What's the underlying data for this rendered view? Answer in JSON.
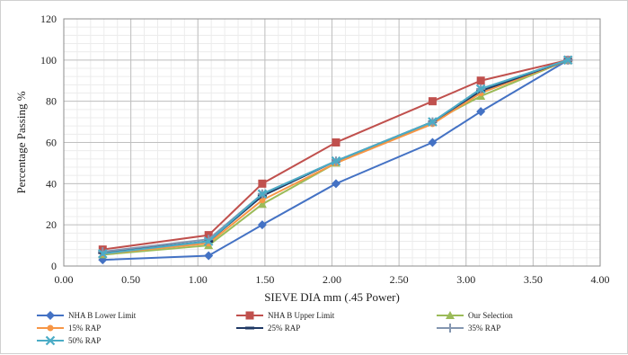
{
  "chart_data": {
    "type": "line",
    "xlabel": "SIEVE DIA mm (.45 Power)",
    "ylabel": "Percentage Passing %",
    "xlim": [
      0,
      4
    ],
    "ylim": [
      0,
      120
    ],
    "x_ticks": [
      "0.00",
      "0.50",
      "1.00",
      "1.50",
      "2.00",
      "2.50",
      "3.00",
      "3.50",
      "4.00"
    ],
    "y_ticks": [
      "0",
      "20",
      "40",
      "60",
      "80",
      "100",
      "120"
    ],
    "grid": true,
    "legend_position": "bottom",
    "x": [
      0.29,
      1.08,
      1.48,
      2.03,
      2.75,
      3.11,
      3.76
    ],
    "series": [
      {
        "name": "NHA B Lower Limit",
        "color": "#4472c4",
        "marker": "diamond",
        "values": [
          3,
          5,
          20,
          40,
          60,
          75,
          100
        ]
      },
      {
        "name": "NHA B Upper Limit",
        "color": "#c0504d",
        "marker": "square",
        "values": [
          8,
          15,
          40,
          60,
          80,
          90,
          100
        ]
      },
      {
        "name": "Our Selection",
        "color": "#9bbb59",
        "marker": "triangle",
        "values": [
          5.5,
          10,
          30,
          50,
          70,
          82.5,
          100
        ]
      },
      {
        "name": "15% RAP",
        "color": "#f79646",
        "marker": "circle",
        "values": [
          6,
          11,
          32,
          50,
          69,
          84,
          100
        ]
      },
      {
        "name": "25% RAP",
        "color": "#1f3864",
        "marker": "dash",
        "values": [
          6.5,
          12,
          34,
          51,
          70,
          85,
          100
        ]
      },
      {
        "name": "35%  RAP",
        "color": "#8496b0",
        "marker": "plus",
        "values": [
          7,
          13,
          35,
          51,
          70,
          86,
          100
        ]
      },
      {
        "name": "50% RAP",
        "color": "#4bacc6",
        "marker": "x",
        "values": [
          6,
          12,
          35,
          51,
          70,
          86,
          100
        ]
      }
    ]
  }
}
